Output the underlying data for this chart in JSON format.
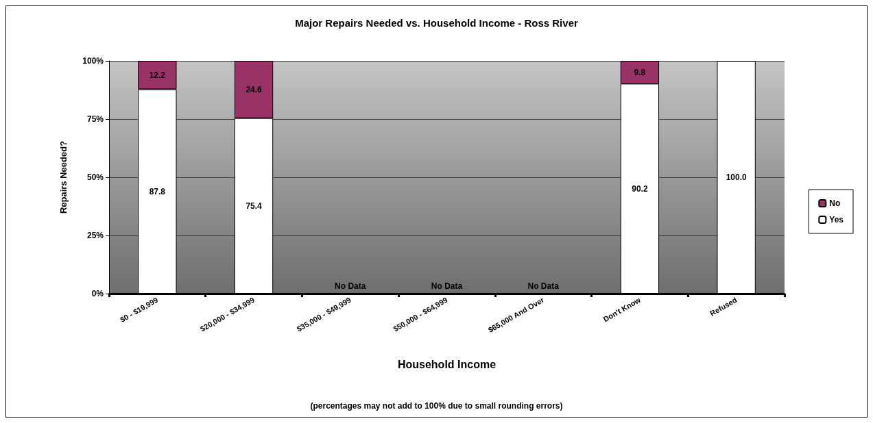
{
  "chart_data": {
    "type": "bar",
    "stacked": true,
    "title": "Major Repairs Needed vs. Household Income - Ross River",
    "xlabel": "Household Income",
    "ylabel": "Repairs Needed?",
    "categories": [
      "$0 - $19,999",
      "$20,000 - $34,999",
      "$35,000 - $49,999",
      "$50,000 - $64,999",
      "$65,000 And Over",
      "Don't Know",
      "Refused"
    ],
    "series": [
      {
        "name": "Yes",
        "color": "#ffffff",
        "values": [
          87.8,
          75.4,
          null,
          null,
          null,
          90.2,
          100.0
        ],
        "value_labels": [
          "87.8",
          "75.4",
          null,
          null,
          null,
          "90.2",
          "100.0"
        ]
      },
      {
        "name": "No",
        "color": "#993366",
        "values": [
          12.2,
          24.6,
          0,
          0,
          0,
          9.8,
          null
        ],
        "value_labels": [
          "12.2",
          "24.6",
          "No Data",
          "No Data",
          "No Data",
          "9.8",
          null
        ]
      }
    ],
    "ylim": [
      0,
      100
    ],
    "yticks": [
      {
        "value": 0,
        "label": "0%"
      },
      {
        "value": 25,
        "label": "25%"
      },
      {
        "value": 50,
        "label": "50%"
      },
      {
        "value": 75,
        "label": "75%"
      },
      {
        "value": 100,
        "label": "100%"
      }
    ],
    "grid": "y",
    "legend": "right",
    "annotations": [
      "(percentages may not add to 100% due to small rounding errors)"
    ]
  }
}
